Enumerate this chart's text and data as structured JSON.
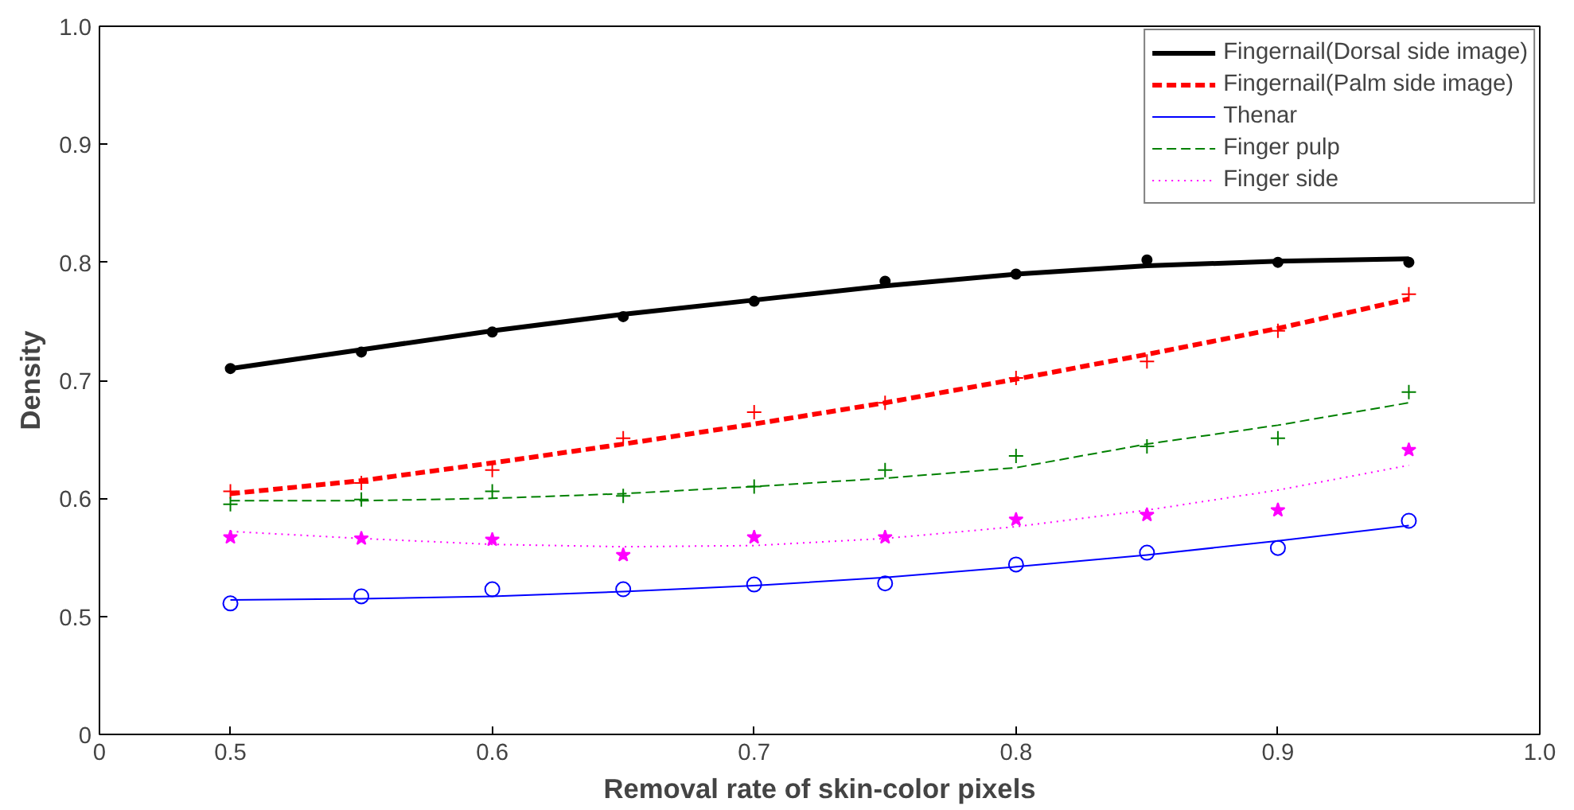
{
  "chart_data": {
    "type": "line",
    "xlabel": "Removal rate of skin-color pixels",
    "ylabel": "Density",
    "xlim": [
      0.45,
      1.0
    ],
    "xticks": [
      {
        "value": 0.45,
        "label": "0"
      },
      0.5,
      0.6,
      0.7,
      0.8,
      0.9,
      {
        "value": 1.0,
        "label": "1.0"
      }
    ],
    "ylim": [
      0.4,
      1.0
    ],
    "yticks": [
      {
        "value": 0.4,
        "label": "0"
      },
      0.5,
      0.6,
      0.7,
      0.8,
      0.9,
      {
        "value": 1.0,
        "label": "1.0"
      }
    ],
    "grid": false,
    "legend": "top right",
    "x": [
      0.5,
      0.55,
      0.6,
      0.65,
      0.7,
      0.75,
      0.8,
      0.85,
      0.9,
      0.95
    ],
    "series": [
      {
        "type": "scatter",
        "marker": "circle",
        "color": "#000000",
        "values": [
          0.71,
          0.724,
          0.741,
          0.754,
          0.767,
          0.784,
          0.79,
          0.802,
          0.8,
          0.8
        ]
      },
      {
        "type": "scatter",
        "marker": "cross",
        "color": "#ff0000",
        "values": [
          0.606,
          0.613,
          0.624,
          0.651,
          0.673,
          0.681,
          0.702,
          0.716,
          0.742,
          0.773
        ]
      },
      {
        "type": "scatter",
        "marker": "cross",
        "color": "#008000",
        "values": [
          0.595,
          0.599,
          0.606,
          0.602,
          0.61,
          0.624,
          0.636,
          0.644,
          0.651,
          0.69
        ]
      },
      {
        "type": "scatter",
        "marker": "star",
        "color": "#ff00ff",
        "values": [
          0.567,
          0.566,
          0.565,
          0.552,
          0.567,
          0.567,
          0.582,
          0.586,
          0.59,
          0.641
        ]
      },
      {
        "type": "scatter",
        "marker": "circle",
        "color": "#0000ff",
        "values": [
          0.511,
          0.517,
          0.523,
          0.523,
          0.527,
          0.528,
          0.544,
          0.554,
          0.558,
          0.581
        ]
      },
      {
        "name": "Fingernail(Dorsal side image)",
        "line_style": "solid",
        "color": "#000000",
        "values": [
          0.71,
          0.726,
          0.742,
          0.756,
          0.768,
          0.78,
          0.79,
          0.797,
          0.801,
          0.803
        ]
      },
      {
        "name": "Fingernail(Palm side image)",
        "line_style": "dashed",
        "color": "#ff0000",
        "values": [
          0.604,
          0.615,
          0.63,
          0.646,
          0.663,
          0.681,
          0.701,
          0.722,
          0.744,
          0.769
        ]
      },
      {
        "name": "Thenar",
        "line_style": "solid",
        "color": "#0000ff",
        "values": [
          0.514,
          0.515,
          0.517,
          0.521,
          0.526,
          0.533,
          0.542,
          0.552,
          0.564,
          0.577
        ]
      },
      {
        "name": "Finger pulp",
        "line_style": "dashed",
        "color": "#008000",
        "values": [
          0.598,
          0.598,
          0.6,
          0.604,
          0.61,
          0.617,
          0.626,
          0.646,
          0.662,
          0.681
        ]
      },
      {
        "name": "Finger side",
        "line_style": "dotted",
        "color": "#ff00ff",
        "values": [
          0.572,
          0.566,
          0.561,
          0.559,
          0.56,
          0.566,
          0.576,
          0.59,
          0.607,
          0.628
        ]
      }
    ]
  }
}
